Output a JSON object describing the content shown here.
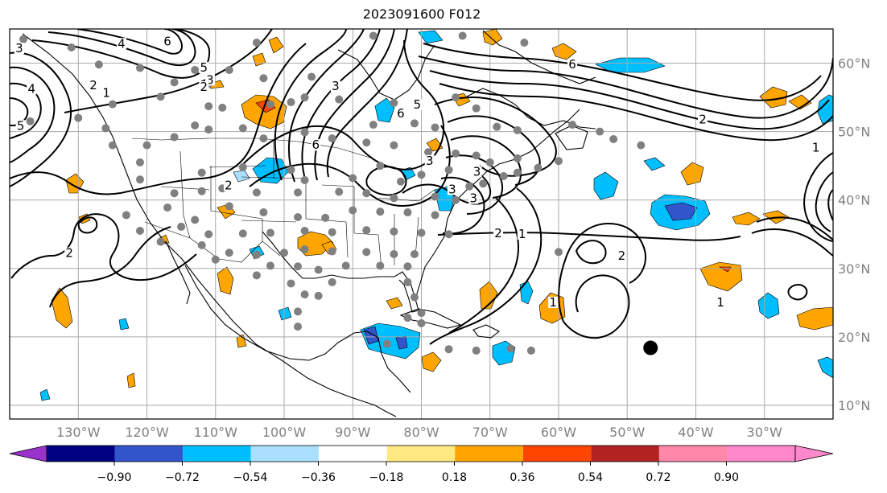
{
  "title": "2023091600 F012",
  "map": {
    "projection": "cylindrical",
    "lon_range": [
      -140,
      -20
    ],
    "lat_range": [
      8,
      65
    ],
    "lon_labels": [
      {
        "lon": -130,
        "text": "130°W"
      },
      {
        "lon": -120,
        "text": "120°W"
      },
      {
        "lon": -110,
        "text": "110°W"
      },
      {
        "lon": -100,
        "text": "100°W"
      },
      {
        "lon": -90,
        "text": "90°W"
      },
      {
        "lon": -80,
        "text": "80°W"
      },
      {
        "lon": -70,
        "text": "70°W"
      },
      {
        "lon": -60,
        "text": "60°W"
      },
      {
        "lon": -50,
        "text": "50°W"
      },
      {
        "lon": -40,
        "text": "40°W"
      },
      {
        "lon": -30,
        "text": "30°W"
      }
    ],
    "lat_labels": [
      {
        "lat": 10,
        "text": "10°N"
      },
      {
        "lat": 20,
        "text": "20°N"
      },
      {
        "lat": 30,
        "text": "30°N"
      },
      {
        "lat": 40,
        "text": "40°N"
      },
      {
        "lat": 50,
        "text": "50°N"
      },
      {
        "lat": 60,
        "text": "60°N"
      }
    ],
    "storm_marker": {
      "lon": -46.6,
      "lat": 18.4
    },
    "contour_labels": [
      {
        "text": "3",
        "lon": -138.6,
        "lat": 61.8
      },
      {
        "text": "4",
        "lon": -136.8,
        "lat": 55.9
      },
      {
        "text": "5",
        "lon": -138.4,
        "lat": 50.5
      },
      {
        "text": "2",
        "lon": -127.8,
        "lat": 56.4
      },
      {
        "text": "1",
        "lon": -125.9,
        "lat": 55.3
      },
      {
        "text": "4",
        "lon": -123.7,
        "lat": 62.5
      },
      {
        "text": "6",
        "lon": -117.0,
        "lat": 62.8
      },
      {
        "text": "5",
        "lon": -111.7,
        "lat": 59.0
      },
      {
        "text": "3",
        "lon": -110.8,
        "lat": 57.2
      },
      {
        "text": "2",
        "lon": -111.7,
        "lat": 56.2
      },
      {
        "text": "3",
        "lon": -92.5,
        "lat": 56.3
      },
      {
        "text": "6",
        "lon": -83.0,
        "lat": 52.3
      },
      {
        "text": "5",
        "lon": -80.6,
        "lat": 53.6
      },
      {
        "text": "6",
        "lon": -95.4,
        "lat": 47.7
      },
      {
        "text": "2",
        "lon": -108.1,
        "lat": 41.8
      },
      {
        "text": "6",
        "lon": -58.0,
        "lat": 59.5
      },
      {
        "text": "2",
        "lon": -39.0,
        "lat": 51.4
      },
      {
        "text": "1",
        "lon": -22.5,
        "lat": 47.3
      },
      {
        "text": "3",
        "lon": -75.5,
        "lat": 41.2
      },
      {
        "text": "3",
        "lon": -72.4,
        "lat": 39.9
      },
      {
        "text": "2",
        "lon": -68.8,
        "lat": 34.8
      },
      {
        "text": "1",
        "lon": -65.3,
        "lat": 34.7
      },
      {
        "text": "2",
        "lon": -50.8,
        "lat": 31.5
      },
      {
        "text": "1",
        "lon": -60.8,
        "lat": 24.7
      },
      {
        "text": "1",
        "lon": -36.4,
        "lat": 24.7
      },
      {
        "text": "2",
        "lon": -131.3,
        "lat": 31.9
      },
      {
        "text": "3",
        "lon": -78.8,
        "lat": 45.4
      },
      {
        "text": "3",
        "lon": -71.9,
        "lat": 43.8
      }
    ],
    "stations": [
      [
        -138,
        63.5
      ],
      [
        -131,
        62.3
      ],
      [
        -127,
        59.8
      ],
      [
        -121,
        59.3
      ],
      [
        -113,
        59.0
      ],
      [
        -108,
        59.0
      ],
      [
        -104,
        63.0
      ],
      [
        -87,
        64.0
      ],
      [
        -74,
        64.0
      ],
      [
        -65,
        63.0
      ],
      [
        -96,
        58.0
      ],
      [
        -103,
        57.8
      ],
      [
        -116,
        57.2
      ],
      [
        -111,
        57.0
      ],
      [
        -118,
        55.1
      ],
      [
        -125,
        54.0
      ],
      [
        -130,
        52.0
      ],
      [
        -137,
        51.5
      ],
      [
        -126,
        50.5
      ],
      [
        -111,
        53.7
      ],
      [
        -109,
        53.5
      ],
      [
        -102,
        54.0
      ],
      [
        -99,
        54.3
      ],
      [
        -97,
        55.0
      ],
      [
        -92,
        54.7
      ],
      [
        -84,
        54.2
      ],
      [
        -75,
        55.0
      ],
      [
        -72,
        53.4
      ],
      [
        -87,
        51.0
      ],
      [
        -81,
        51.2
      ],
      [
        -78,
        50.6
      ],
      [
        -69,
        50.7
      ],
      [
        -66,
        50.2
      ],
      [
        -58,
        51.0
      ],
      [
        -54,
        50.0
      ],
      [
        -52,
        48.9
      ],
      [
        -48,
        48.0
      ],
      [
        -103,
        49.0
      ],
      [
        -111,
        50.3
      ],
      [
        -113,
        50.9
      ],
      [
        -106,
        50.5
      ],
      [
        -97,
        49.9
      ],
      [
        -93,
        49.0
      ],
      [
        -88,
        48.4
      ],
      [
        -84,
        48.0
      ],
      [
        -79,
        47.0
      ],
      [
        -75,
        46.8
      ],
      [
        -72,
        46.5
      ],
      [
        -70,
        45.5
      ],
      [
        -66,
        46.1
      ],
      [
        -60,
        45.7
      ],
      [
        -63,
        44.7
      ],
      [
        -66,
        44.0
      ],
      [
        -68,
        43.5
      ],
      [
        -120,
        48.0
      ],
      [
        -125,
        48.0
      ],
      [
        -116,
        49.2
      ],
      [
        -121,
        45.5
      ],
      [
        -112,
        44.0
      ],
      [
        -106,
        44.8
      ],
      [
        -99,
        44.4
      ],
      [
        -97,
        42.9
      ],
      [
        -90,
        43.2
      ],
      [
        -86,
        45.0
      ],
      [
        -83,
        42.7
      ],
      [
        -80,
        43.7
      ],
      [
        -76,
        44.4
      ],
      [
        -73,
        42.0
      ],
      [
        -71,
        42.4
      ],
      [
        -121,
        43.0
      ],
      [
        -116,
        41.0
      ],
      [
        -112,
        41.3
      ],
      [
        -109,
        41.7
      ],
      [
        -104,
        41.1
      ],
      [
        -98,
        41.1
      ],
      [
        -92,
        41.2
      ],
      [
        -88,
        41.0
      ],
      [
        -84,
        40.3
      ],
      [
        -78,
        40.5
      ],
      [
        -75,
        40.0
      ],
      [
        -123,
        37.8
      ],
      [
        -117,
        38.9
      ],
      [
        -113,
        37.1
      ],
      [
        -108,
        39.1
      ],
      [
        -103,
        38.2
      ],
      [
        -98,
        37.5
      ],
      [
        -94,
        37.4
      ],
      [
        -90,
        38.5
      ],
      [
        -86,
        38.3
      ],
      [
        -82,
        38.2
      ],
      [
        -78,
        37.8
      ],
      [
        -121,
        35.5
      ],
      [
        -115,
        36.1
      ],
      [
        -111,
        35.0
      ],
      [
        -106,
        35.1
      ],
      [
        -102,
        35.2
      ],
      [
        -97,
        35.5
      ],
      [
        -93,
        35.3
      ],
      [
        -88,
        35.6
      ],
      [
        -84,
        35.4
      ],
      [
        -80,
        35.2
      ],
      [
        -76,
        35.0
      ],
      [
        -118,
        33.9
      ],
      [
        -112,
        33.4
      ],
      [
        -108,
        32.3
      ],
      [
        -104,
        32.0
      ],
      [
        -100,
        32.3
      ],
      [
        -97,
        32.8
      ],
      [
        -93,
        32.5
      ],
      [
        -88,
        32.4
      ],
      [
        -84,
        32.1
      ],
      [
        -81,
        32.1
      ],
      [
        -110,
        31.3
      ],
      [
        -102,
        30.4
      ],
      [
        -98,
        30.3
      ],
      [
        -95,
        29.8
      ],
      [
        -91,
        30.4
      ],
      [
        -86,
        30.4
      ],
      [
        -82,
        30.3
      ],
      [
        -99,
        27.8
      ],
      [
        -97,
        26.2
      ],
      [
        -93,
        28.0
      ],
      [
        -82,
        28.0
      ],
      [
        -81,
        25.8
      ],
      [
        -80,
        23.5
      ],
      [
        -82,
        22.8
      ],
      [
        -80,
        22.0
      ],
      [
        -85,
        19.0
      ],
      [
        -76,
        18.2
      ],
      [
        -72,
        18.0
      ],
      [
        -67,
        18.3
      ],
      [
        -64,
        18.0
      ],
      [
        -95,
        26.0
      ],
      [
        -104,
        29.0
      ],
      [
        -98,
        23.7
      ],
      [
        -98,
        21.5
      ],
      [
        -60,
        32.4
      ]
    ]
  },
  "colorbar": {
    "tick_labels": [
      "−0.90",
      "−0.72",
      "−0.54",
      "−0.36",
      "−0.18",
      "0.18",
      "0.36",
      "0.54",
      "0.72",
      "0.90"
    ],
    "colors": [
      "#9933cc",
      "#000080",
      "#3355cc",
      "#00bfff",
      "#aadfff",
      "#ffffff",
      "#ffe980",
      "#ffa500",
      "#ff4500",
      "#b22222",
      "#ff88aa",
      "#ff88cc"
    ],
    "under_color": "#9933cc",
    "over_color": "#ff88cc"
  }
}
